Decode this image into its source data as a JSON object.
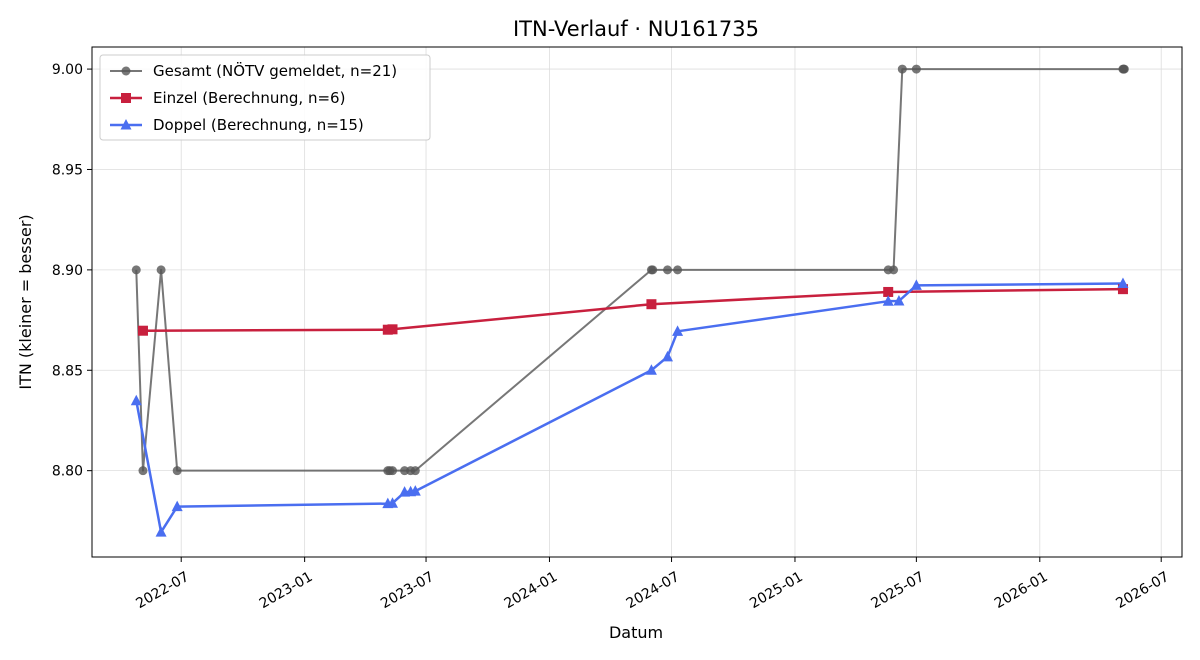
{
  "chart_data": {
    "type": "line",
    "title": "ITN-Verlauf · NU161735",
    "xlabel": "Datum",
    "ylabel": "ITN  (kleiner = besser)",
    "x_type": "date",
    "xlim": [
      "2022-02-18",
      "2026-08-01"
    ],
    "ylim": [
      8.757,
      9.011
    ],
    "x_ticks": [
      {
        "date": "2022-07-01",
        "label": "2022-07"
      },
      {
        "date": "2023-01-01",
        "label": "2023-01"
      },
      {
        "date": "2023-07-01",
        "label": "2023-07"
      },
      {
        "date": "2024-01-01",
        "label": "2024-01"
      },
      {
        "date": "2024-07-01",
        "label": "2024-07"
      },
      {
        "date": "2025-01-01",
        "label": "2025-01"
      },
      {
        "date": "2025-07-01",
        "label": "2025-07"
      },
      {
        "date": "2026-01-01",
        "label": "2026-01"
      },
      {
        "date": "2026-07-01",
        "label": "2026-07"
      }
    ],
    "y_ticks": [
      {
        "value": 8.8,
        "label": "8.80"
      },
      {
        "value": 8.85,
        "label": "8.85"
      },
      {
        "value": 8.9,
        "label": "8.90"
      },
      {
        "value": 8.95,
        "label": "8.95"
      },
      {
        "value": 9.0,
        "label": "9.00"
      }
    ],
    "grid": true,
    "legend_position": "top-left",
    "series": [
      {
        "name": "Gesamt (NÖTV gemeldet, n=21)",
        "color": "#555555",
        "marker": "circle",
        "points": [
          {
            "x": "2022-04-25",
            "y": 8.9
          },
          {
            "x": "2022-05-05",
            "y": 8.8
          },
          {
            "x": "2022-06-01",
            "y": 8.9
          },
          {
            "x": "2022-06-25",
            "y": 8.8
          },
          {
            "x": "2023-05-05",
            "y": 8.8
          },
          {
            "x": "2023-05-08",
            "y": 8.8
          },
          {
            "x": "2023-05-12",
            "y": 8.8
          },
          {
            "x": "2023-05-30",
            "y": 8.8
          },
          {
            "x": "2023-06-08",
            "y": 8.8
          },
          {
            "x": "2023-06-15",
            "y": 8.8
          },
          {
            "x": "2024-06-01",
            "y": 8.9
          },
          {
            "x": "2024-06-03",
            "y": 8.9
          },
          {
            "x": "2024-06-25",
            "y": 8.9
          },
          {
            "x": "2024-07-10",
            "y": 8.9
          },
          {
            "x": "2025-05-20",
            "y": 8.9
          },
          {
            "x": "2025-05-28",
            "y": 8.9
          },
          {
            "x": "2025-06-10",
            "y": 9.0
          },
          {
            "x": "2025-07-01",
            "y": 9.0
          },
          {
            "x": "2026-05-05",
            "y": 9.0
          },
          {
            "x": "2026-05-06",
            "y": 9.0
          },
          {
            "x": "2026-05-07",
            "y": 9.0
          }
        ]
      },
      {
        "name": "Einzel (Berechnung, n=6)",
        "color": "#c8203e",
        "marker": "square",
        "points": [
          {
            "x": "2022-05-05",
            "y": 8.8697
          },
          {
            "x": "2023-05-05",
            "y": 8.8702
          },
          {
            "x": "2023-05-12",
            "y": 8.8704
          },
          {
            "x": "2024-06-01",
            "y": 8.8829
          },
          {
            "x": "2025-05-20",
            "y": 8.889
          },
          {
            "x": "2026-05-05",
            "y": 8.8904
          }
        ]
      },
      {
        "name": "Doppel (Berechnung, n=15)",
        "color": "#4a6ef0",
        "marker": "triangle",
        "points": [
          {
            "x": "2022-04-25",
            "y": 8.8348
          },
          {
            "x": "2022-06-01",
            "y": 8.7694
          },
          {
            "x": "2022-06-25",
            "y": 8.7821
          },
          {
            "x": "2023-05-05",
            "y": 8.7836
          },
          {
            "x": "2023-05-12",
            "y": 8.7838
          },
          {
            "x": "2023-05-30",
            "y": 8.7893
          },
          {
            "x": "2023-06-08",
            "y": 8.7895
          },
          {
            "x": "2023-06-15",
            "y": 8.7898
          },
          {
            "x": "2024-06-01",
            "y": 8.85
          },
          {
            "x": "2024-06-25",
            "y": 8.8567
          },
          {
            "x": "2024-07-10",
            "y": 8.8694
          },
          {
            "x": "2025-05-20",
            "y": 8.8844
          },
          {
            "x": "2025-06-05",
            "y": 8.8845
          },
          {
            "x": "2025-07-01",
            "y": 8.8923
          },
          {
            "x": "2026-05-05",
            "y": 8.8932
          }
        ]
      }
    ]
  }
}
